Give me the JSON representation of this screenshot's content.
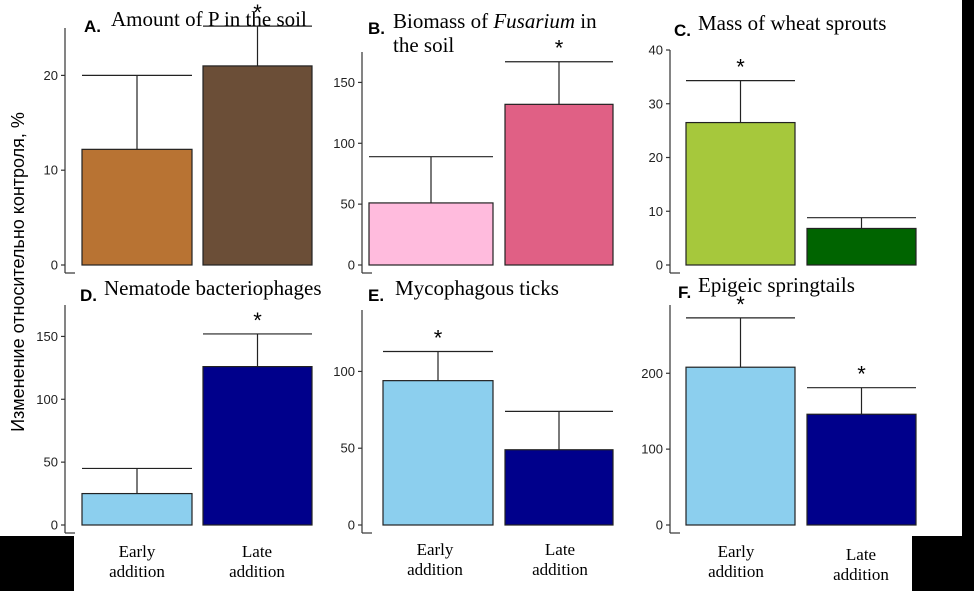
{
  "y_label": "Изменение относительно контроля, %",
  "x_categories": [
    [
      "Early",
      "addition"
    ],
    [
      "Late",
      "addition"
    ]
  ],
  "chart_data": [
    {
      "type": "bar",
      "letter": "A.",
      "title_lines": [
        [
          {
            "t": "Amount of P in the soil",
            "i": false
          }
        ]
      ],
      "categories": [
        "Early addition",
        "Late addition"
      ],
      "values": [
        12.2,
        21.0
      ],
      "errors": [
        7.8,
        4.2
      ],
      "significant": [
        false,
        true
      ],
      "colors": [
        "#b87333",
        "#6b4e37"
      ],
      "ylim": [
        0,
        25
      ],
      "yticks": [
        0,
        10,
        20
      ]
    },
    {
      "type": "bar",
      "letter": "B.",
      "title_lines": [
        [
          {
            "t": "Biomass of ",
            "i": false
          },
          {
            "t": "Fusarium",
            "i": true
          },
          {
            "t": " in",
            "i": false
          }
        ],
        [
          {
            "t": "the soil",
            "i": false
          }
        ]
      ],
      "categories": [
        "Early addition",
        "Late addition"
      ],
      "values": [
        51,
        132
      ],
      "errors": [
        38,
        35
      ],
      "significant": [
        false,
        true
      ],
      "colors": [
        "#ffbbdd",
        "#e06085"
      ],
      "ylim": [
        0,
        175
      ],
      "yticks": [
        0,
        50,
        100,
        150
      ]
    },
    {
      "type": "bar",
      "letter": "C.",
      "title_lines": [
        [
          {
            "t": "Mass of wheat sprouts",
            "i": false
          }
        ]
      ],
      "categories": [
        "Early addition",
        "Late addition"
      ],
      "values": [
        26.5,
        6.8
      ],
      "errors": [
        7.8,
        2.0
      ],
      "significant": [
        true,
        false
      ],
      "colors": [
        "#a6c83c",
        "#006400"
      ],
      "ylim": [
        0,
        40
      ],
      "yticks": [
        0,
        10,
        20,
        30,
        40
      ]
    },
    {
      "type": "bar",
      "letter": "D.",
      "title_lines": [
        [
          {
            "t": "Nematode bacteriophages",
            "i": false
          }
        ]
      ],
      "categories": [
        "Early addition",
        "Late addition"
      ],
      "values": [
        25,
        126
      ],
      "errors": [
        20,
        26
      ],
      "significant": [
        false,
        true
      ],
      "colors": [
        "#8ccfee",
        "#00008b"
      ],
      "ylim": [
        0,
        175
      ],
      "yticks": [
        0,
        50,
        100,
        150
      ]
    },
    {
      "type": "bar",
      "letter": "E.",
      "title_lines": [
        [
          {
            "t": "Mycophagous ticks",
            "i": false
          }
        ]
      ],
      "categories": [
        "Early addition",
        "Late addition"
      ],
      "values": [
        94,
        49
      ],
      "errors": [
        19,
        25
      ],
      "significant": [
        true,
        false
      ],
      "colors": [
        "#8ccfee",
        "#00008b"
      ],
      "ylim": [
        0,
        140
      ],
      "yticks": [
        0,
        50,
        100
      ]
    },
    {
      "type": "bar",
      "letter": "F.",
      "title_lines": [
        [
          {
            "t": "Epigeic springtails",
            "i": false
          }
        ]
      ],
      "categories": [
        "Early addition",
        "Late addition"
      ],
      "values": [
        208,
        146
      ],
      "errors": [
        65,
        35
      ],
      "significant": [
        true,
        true
      ],
      "colors": [
        "#8ccfee",
        "#00008b"
      ],
      "ylim": [
        0,
        290
      ],
      "yticks": [
        0,
        100,
        200
      ]
    }
  ]
}
